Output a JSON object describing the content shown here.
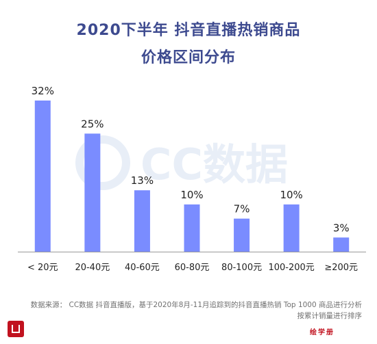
{
  "title_line1": "2020下半年 抖音直播热销商品",
  "title_line2": "价格区间分布",
  "watermark": "CC数据",
  "source_line1": "数据来源： CC数据 抖音直播版，基于2020年8月-11月追踪到的抖音直播热销 Top 1000 商品进行分析",
  "source_line2": "按累计销量进行排序",
  "brand_mark": "绘学册",
  "colors": {
    "bar": "#7a8cff",
    "title": "#3d4a8f",
    "axis": "#999999",
    "watermark": "#e8eef7"
  },
  "chart_data": {
    "type": "bar",
    "title": "2020下半年 抖音直播热销商品 价格区间分布",
    "categories": [
      "< 20元",
      "20-40元",
      "40-60元",
      "60-80元",
      "80-100元",
      "100-200元",
      "≥200元"
    ],
    "values": [
      32,
      25,
      13,
      10,
      7,
      10,
      3
    ],
    "value_labels": [
      "32%",
      "25%",
      "13%",
      "10%",
      "7%",
      "10%",
      "3%"
    ],
    "ylim": [
      0,
      32
    ],
    "grid": false,
    "legend": "none"
  }
}
